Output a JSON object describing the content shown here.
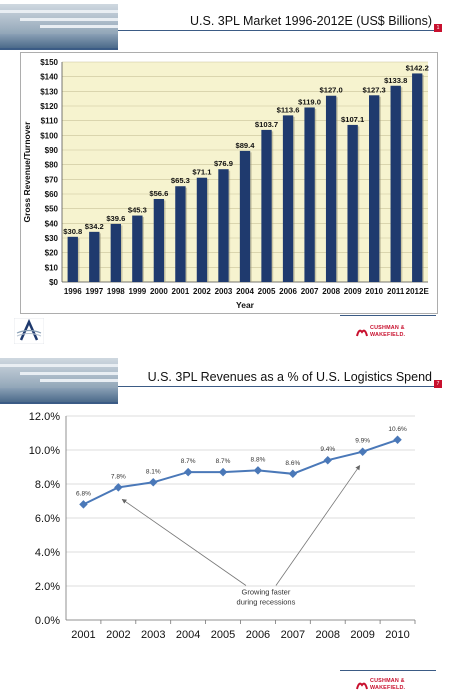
{
  "slide1": {
    "title": "U.S. 3PL Market 1996-2012E (US$ Billions)",
    "page_number": "1",
    "footer_logo": "CUSHMAN & WAKEFIELD."
  },
  "slide2": {
    "title": "U.S. 3PL Revenues as a % of U.S. Logistics Spend",
    "page_number": "7",
    "footer_logo": "CUSHMAN & WAKEFIELD."
  },
  "chart_data": [
    {
      "type": "bar",
      "title": "",
      "xlabel": "Year",
      "ylabel": "Gross Revenue/Turnover",
      "ylim": [
        0,
        150
      ],
      "yticks": [
        "$0",
        "$10",
        "$20",
        "$30",
        "$40",
        "$50",
        "$60",
        "$70",
        "$80",
        "$90",
        "$100",
        "$110",
        "$120",
        "$130",
        "$140",
        "$150"
      ],
      "categories": [
        "1996",
        "1997",
        "1998",
        "1999",
        "2000",
        "2001",
        "2002",
        "2003",
        "2004",
        "2005",
        "2006",
        "2007",
        "2008",
        "2009",
        "2010",
        "2011",
        "2012E"
      ],
      "values": [
        30.8,
        34.2,
        39.6,
        45.3,
        56.6,
        65.3,
        71.1,
        76.9,
        89.4,
        103.7,
        113.6,
        119.0,
        127.0,
        107.1,
        127.3,
        133.8,
        142.2
      ],
      "data_labels": [
        "$30.8",
        "$34.2",
        "$39.6",
        "$45.3",
        "$56.6",
        "$65.3",
        "$71.1",
        "$76.9",
        "$89.4",
        "$103.7",
        "$113.6",
        "$119.0",
        "$127.0",
        "$107.1",
        "$127.3",
        "$133.8",
        "$142.2"
      ],
      "bar_color": "#1f3a6e",
      "plot_background": "#f6f3cf",
      "grid": true
    },
    {
      "type": "line",
      "title": "",
      "xlabel": "",
      "ylabel": "",
      "ylim": [
        0,
        12
      ],
      "yticks": [
        "0.0%",
        "2.0%",
        "4.0%",
        "6.0%",
        "8.0%",
        "10.0%",
        "12.0%"
      ],
      "x": [
        "2001",
        "2002",
        "2003",
        "2004",
        "2005",
        "2006",
        "2007",
        "2008",
        "2009",
        "2010"
      ],
      "values": [
        6.8,
        7.8,
        8.1,
        8.7,
        8.7,
        8.8,
        8.6,
        9.4,
        9.9,
        10.6
      ],
      "data_labels": [
        "6.8%",
        "7.8%",
        "8.1%",
        "8.7%",
        "8.7%",
        "8.8%",
        "8.6%",
        "9.4%",
        "9.9%",
        "10.6%"
      ],
      "line_color": "#4a78b8",
      "grid": true,
      "annotation": "Growing faster during recessions"
    }
  ]
}
